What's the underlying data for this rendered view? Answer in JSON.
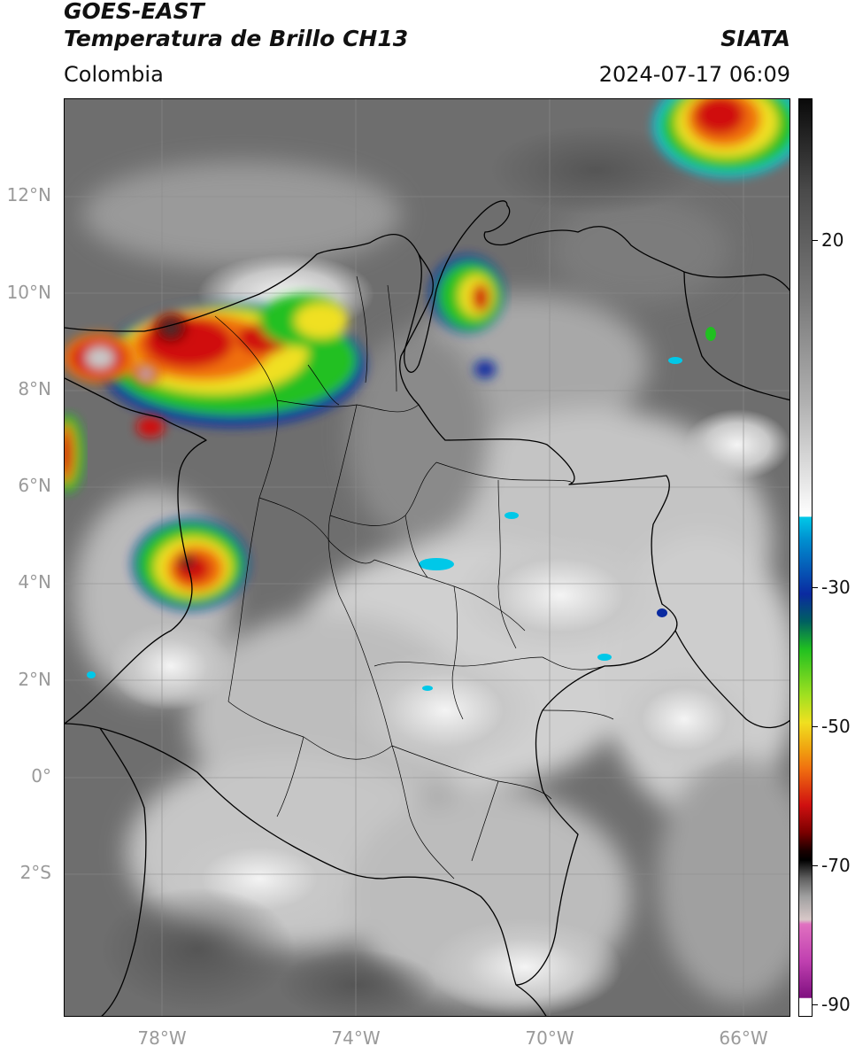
{
  "header": {
    "satellite": "GOES-EAST",
    "product": "Temperatura de Brillo CH13",
    "region": "Colombia",
    "agency": "SIATA",
    "datetime": "2024-07-17 06:09"
  },
  "map": {
    "lat_labels": [
      "12°N",
      "10°N",
      "8°N",
      "6°N",
      "4°N",
      "2°N",
      "0°",
      "2°S"
    ],
    "lon_labels": [
      "78°W",
      "74°W",
      "70°W",
      "66°W"
    ],
    "extent": {
      "lon_min": -80,
      "lon_max": -65,
      "lat_min": -5,
      "lat_max": 14
    },
    "gridlines": true,
    "storm_cells": [
      {
        "name": "caribbean-coast-cluster",
        "lon": -77.0,
        "lat": 9.0
      },
      {
        "name": "uraba-core",
        "lon": -79.2,
        "lat": 8.7
      },
      {
        "name": "guajira-cell",
        "lon": -71.5,
        "lat": 9.8
      },
      {
        "name": "pacific-cell",
        "lon": -77.6,
        "lat": 4.2
      },
      {
        "name": "venezuela-northeast-cell",
        "lon": -65.8,
        "lat": 13.3
      },
      {
        "name": "darien-west-cell",
        "lon": -79.9,
        "lat": 6.8
      }
    ]
  },
  "colorbar": {
    "labels": [
      "20",
      "-30",
      "-50",
      "-70",
      "-90"
    ],
    "colors": {
      "warm": "#4a4a4a",
      "cool": "#ffffff",
      "cyan": "#00c8e8",
      "blue": "#0a2aa0",
      "green": "#20c020",
      "yellow": "#f0e020",
      "orange": "#f08010",
      "red": "#d01010",
      "dark_red": "#500000",
      "black": "#000000",
      "magenta": "#d060c0",
      "purple": "#801080"
    }
  }
}
